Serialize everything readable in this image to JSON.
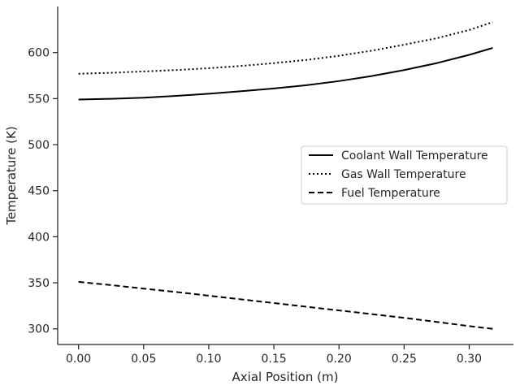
{
  "chart_data": {
    "type": "line",
    "title": "",
    "xlabel": "Axial Position (m)",
    "ylabel": "Temperature (K)",
    "xlim": [
      -0.016,
      0.334
    ],
    "ylim": [
      283,
      650
    ],
    "xticks": [
      0.0,
      0.05,
      0.1,
      0.15,
      0.2,
      0.25,
      0.3
    ],
    "xtick_labels": [
      "0.00",
      "0.05",
      "0.10",
      "0.15",
      "0.20",
      "0.25",
      "0.30"
    ],
    "yticks": [
      300,
      350,
      400,
      450,
      500,
      550,
      600
    ],
    "ytick_labels": [
      "300",
      "350",
      "400",
      "450",
      "500",
      "550",
      "600"
    ],
    "grid": false,
    "legend_position": "center-right",
    "x": [
      0.0,
      0.025,
      0.05,
      0.075,
      0.1,
      0.125,
      0.15,
      0.175,
      0.2,
      0.225,
      0.25,
      0.275,
      0.3,
      0.318
    ],
    "series": [
      {
        "name": "Coolant Wall Temperature",
        "style": "solid",
        "color": "#000000",
        "values": [
          549,
          549.8,
          551,
          553,
          555.3,
          558,
          561,
          564.5,
          569,
          574.5,
          581,
          588.5,
          597.5,
          605
        ]
      },
      {
        "name": "Gas Wall Temperature",
        "style": "dotted",
        "color": "#000000",
        "values": [
          577,
          578,
          579.5,
          581,
          583,
          585.5,
          588.5,
          592,
          596.5,
          602,
          608.5,
          615.5,
          624.5,
          633
        ]
      },
      {
        "name": "Fuel Temperature",
        "style": "dashed",
        "color": "#000000",
        "values": [
          351,
          347.5,
          343.7,
          340,
          336,
          332,
          328,
          324,
          320,
          316,
          312,
          307.5,
          303,
          300
        ]
      }
    ]
  }
}
